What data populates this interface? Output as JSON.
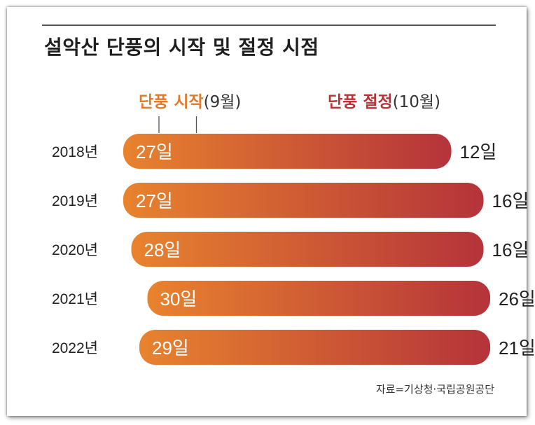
{
  "title": "설악산 단풍의 시작 및 절정 시점",
  "legend": {
    "start_label": "단풍 시작",
    "start_month": "(9월)",
    "peak_label": "단풍 절정",
    "peak_month": "(10월)"
  },
  "source": "자료=기상청·국립공원공단",
  "colors": {
    "start": "#e8832e",
    "peak": "#b5333a",
    "start_text": "#e07a2c",
    "peak_text": "#b83236"
  },
  "chart_data": {
    "type": "bar",
    "orientation": "horizontal-range",
    "categories": [
      "2018년",
      "2019년",
      "2020년",
      "2021년",
      "2022년"
    ],
    "series": [
      {
        "name": "단풍 시작",
        "month": 9,
        "values": [
          27,
          27,
          28,
          30,
          29
        ],
        "labels": [
          "27일",
          "27일",
          "28일",
          "30일",
          "29일"
        ]
      },
      {
        "name": "단풍 절정",
        "month": 10,
        "values": [
          12,
          16,
          16,
          26,
          21
        ],
        "labels": [
          "12일",
          "16일",
          "16일",
          "26일",
          "21일"
        ]
      }
    ]
  }
}
